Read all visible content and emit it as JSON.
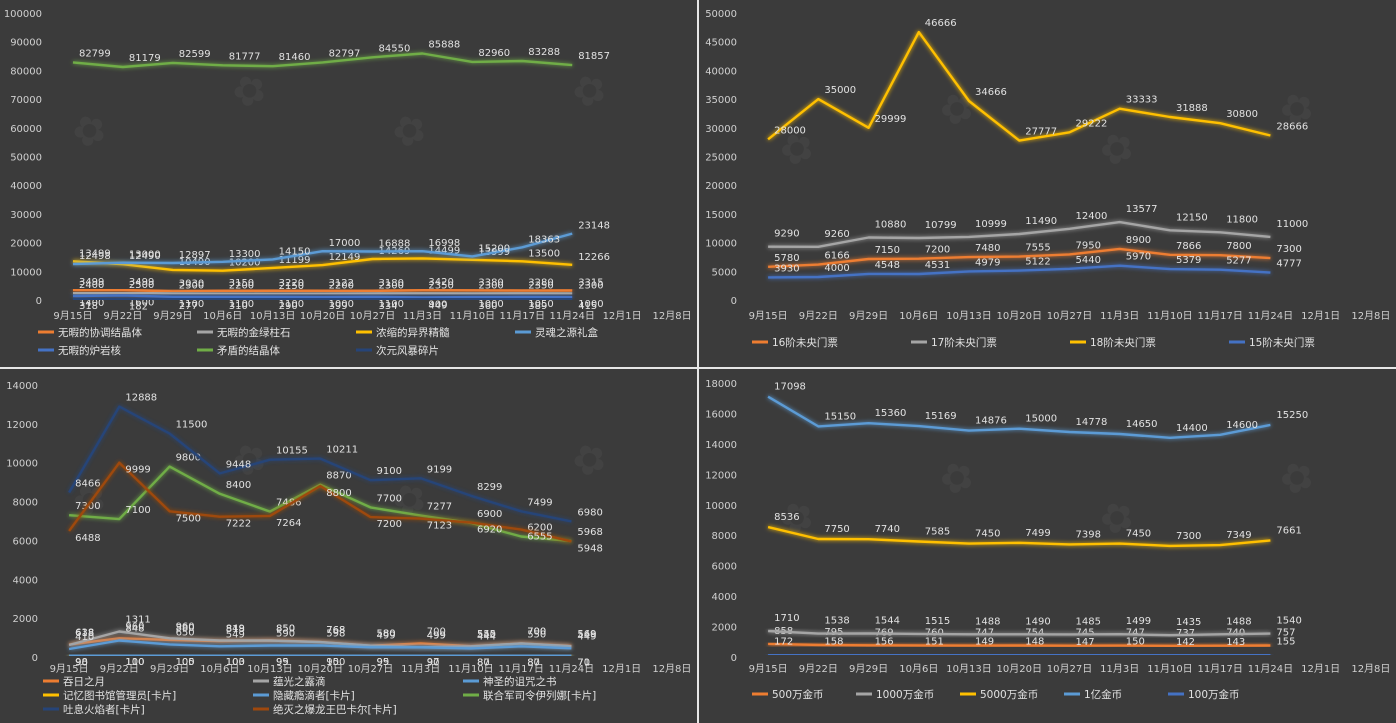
{
  "chart_data": [
    {
      "type": "line",
      "categories": [
        "9月15日",
        "9月22日",
        "9月29日",
        "10月6日",
        "10月13日",
        "10月20日",
        "10月27日",
        "11月3日",
        "11月10日",
        "11月17日",
        "11月24日",
        "12月1日",
        "12月8日"
      ],
      "ylim": [
        0,
        100000
      ],
      "yticks": [
        0,
        10000,
        20000,
        30000,
        40000,
        50000,
        60000,
        70000,
        80000,
        90000,
        100000
      ],
      "legend_position": "bottom",
      "series": [
        {
          "name": "无暇的协调结晶体",
          "color": "#ed7d31",
          "values": [
            3499,
            3499,
            3030,
            3150,
            3220,
            3122,
            3180,
            3420,
            3380,
            3280,
            3315,
            null,
            null
          ]
        },
        {
          "name": "无暇的金绿柱石",
          "color": "#a5a5a5",
          "values": [
            2400,
            2500,
            2300,
            2200,
            2150,
            2200,
            2300,
            2350,
            2300,
            2350,
            2300,
            null,
            null
          ]
        },
        {
          "name": "浓缩的异界精髓",
          "color": "#ffc000",
          "values": [
            13499,
            12490,
            10490,
            10200,
            11199,
            12149,
            14269,
            14499,
            13999,
            13500,
            12266,
            null,
            null
          ]
        },
        {
          "name": "灵魂之源礼盒",
          "color": "#5b9bd5",
          "values": [
            12498,
            13000,
            12897,
            13300,
            14150,
            17000,
            16888,
            16998,
            15200,
            18363,
            23148,
            null,
            null
          ]
        },
        {
          "name": "无暇的炉岩核",
          "color": "#4472c4",
          "values": [
            1400,
            1600,
            1100,
            1100,
            1100,
            1000,
            1100,
            900,
            1000,
            1050,
            1000,
            null,
            null
          ]
        },
        {
          "name": "矛盾的结晶体",
          "color": "#70ad47",
          "values": [
            82799,
            81179,
            82599,
            81777,
            81460,
            82797,
            84550,
            85888,
            82960,
            83288,
            81857,
            null,
            null
          ]
        },
        {
          "name": "次元风暴碎片",
          "color": "#264478",
          "values": [
            318,
            182,
            277,
            310,
            290,
            399,
            334,
            449,
            360,
            389,
            415,
            null,
            null
          ]
        }
      ]
    },
    {
      "type": "line",
      "categories": [
        "9月15日",
        "9月22日",
        "9月29日",
        "10月6日",
        "10月13日",
        "10月20日",
        "10月27日",
        "11月3日",
        "11月10日",
        "11月17日",
        "11月24日",
        "12月1日",
        "12月8日"
      ],
      "ylim": [
        0,
        50000
      ],
      "yticks": [
        0,
        5000,
        10000,
        15000,
        20000,
        25000,
        30000,
        35000,
        40000,
        45000,
        50000
      ],
      "legend_position": "bottom",
      "series": [
        {
          "name": "16阶未央门票",
          "color": "#ed7d31",
          "values": [
            5780,
            6166,
            7150,
            7200,
            7480,
            7555,
            7950,
            8900,
            7866,
            7800,
            7300,
            null,
            null
          ]
        },
        {
          "name": "17阶未央门票",
          "color": "#a5a5a5",
          "values": [
            9290,
            9260,
            10880,
            10799,
            10999,
            11490,
            12400,
            13577,
            12150,
            11800,
            11000,
            null,
            null
          ]
        },
        {
          "name": "18阶未央门票",
          "color": "#ffc000",
          "values": [
            28000,
            35000,
            29999,
            46666,
            34666,
            27777,
            29222,
            33333,
            31888,
            30800,
            28666,
            null,
            null
          ]
        },
        {
          "name": "15阶未央门票",
          "color": "#4472c4",
          "values": [
            3930,
            4000,
            4548,
            4531,
            4979,
            5122,
            5440,
            5970,
            5379,
            5277,
            4777,
            null,
            null
          ]
        }
      ]
    },
    {
      "type": "line",
      "categories": [
        "9月15日",
        "9月22日",
        "9月29日",
        "10月6日",
        "10月13日",
        "10月20日",
        "10月27日",
        "11月3日",
        "11月10日",
        "11月17日",
        "11月24日",
        "12月1日",
        "12月8日"
      ],
      "ylim": [
        0,
        14000
      ],
      "yticks": [
        0,
        2000,
        4000,
        6000,
        8000,
        10000,
        12000,
        14000
      ],
      "legend_position": "bottom",
      "series": [
        {
          "name": "吞日之月",
          "color": "#ed7d31",
          "values": [
            638,
            960,
            880,
            818,
            850,
            768,
            580,
            700,
            555,
            700,
            569,
            null,
            null
          ]
        },
        {
          "name": "蕴光之露滴",
          "color": "#a5a5a5",
          "values": [
            618,
            1311,
            960,
            849,
            850,
            768,
            580,
            499,
            540,
            700,
            549,
            null,
            null
          ]
        },
        {
          "name": "神圣的诅咒之书",
          "color": "#5b9bd5",
          "values": [
            410,
            848,
            650,
            549,
            590,
            598,
            499,
            499,
            444,
            550,
            449,
            null,
            null
          ]
        },
        {
          "name": "记忆图书馆管理员[卡片]",
          "color": "#ffc000",
          "values": [
            98,
            110,
            105,
            103,
            99,
            100,
            99,
            97,
            87,
            87,
            70,
            null,
            null
          ]
        },
        {
          "name": "隐藏瘾滴者[卡片]",
          "color": "#5b9bd5",
          "values": [
            90,
            100,
            100,
            100,
            95,
            95,
            95,
            90,
            80,
            80,
            71,
            null,
            null
          ]
        },
        {
          "name": "联合军司令伊列娜[卡片]",
          "color": "#70ad47",
          "values": [
            7300,
            7100,
            9800,
            8400,
            7486,
            8870,
            7700,
            7277,
            6900,
            6200,
            5968,
            null,
            null
          ]
        },
        {
          "name": "吐息火焰者[卡片]",
          "color": "#264478",
          "values": [
            8466,
            12888,
            11500,
            9448,
            10155,
            10211,
            9100,
            9199,
            8299,
            7499,
            6980,
            null,
            null
          ]
        },
        {
          "name": "绝灭之爆龙王巴卡尔[卡片]",
          "color": "#9e480e",
          "values": [
            6488,
            9999,
            7500,
            7222,
            7264,
            8800,
            7200,
            7123,
            6920,
            6555,
            5948,
            null,
            null
          ]
        }
      ]
    },
    {
      "type": "line",
      "categories": [
        "9月15日",
        "9月22日",
        "9月29日",
        "10月6日",
        "10月13日",
        "10月20日",
        "10月27日",
        "11月3日",
        "11月10日",
        "11月17日",
        "11月24日",
        "12月1日",
        "12月8日"
      ],
      "ylim": [
        0,
        18000
      ],
      "yticks": [
        0,
        2000,
        4000,
        6000,
        8000,
        10000,
        12000,
        14000,
        16000,
        18000
      ],
      "legend_position": "bottom",
      "series": [
        {
          "name": "500万金币",
          "color": "#ed7d31",
          "values": [
            858,
            795,
            769,
            760,
            747,
            754,
            745,
            747,
            737,
            740,
            757,
            null,
            null
          ]
        },
        {
          "name": "1000万金币",
          "color": "#a5a5a5",
          "values": [
            1710,
            1538,
            1544,
            1515,
            1488,
            1490,
            1485,
            1499,
            1435,
            1488,
            1540,
            null,
            null
          ]
        },
        {
          "name": "5000万金币",
          "color": "#ffc000",
          "values": [
            8536,
            7750,
            7740,
            7585,
            7450,
            7499,
            7398,
            7450,
            7300,
            7349,
            7661,
            null,
            null
          ]
        },
        {
          "name": "1亿金币",
          "color": "#5b9bd5",
          "values": [
            17098,
            15150,
            15360,
            15169,
            14876,
            15000,
            14778,
            14650,
            14400,
            14600,
            15250,
            null,
            null
          ]
        },
        {
          "name": "100万金币",
          "color": "#4472c4",
          "values": [
            172,
            158,
            156,
            151,
            149,
            148,
            147,
            150,
            142,
            143,
            155,
            null,
            null
          ]
        }
      ]
    }
  ]
}
